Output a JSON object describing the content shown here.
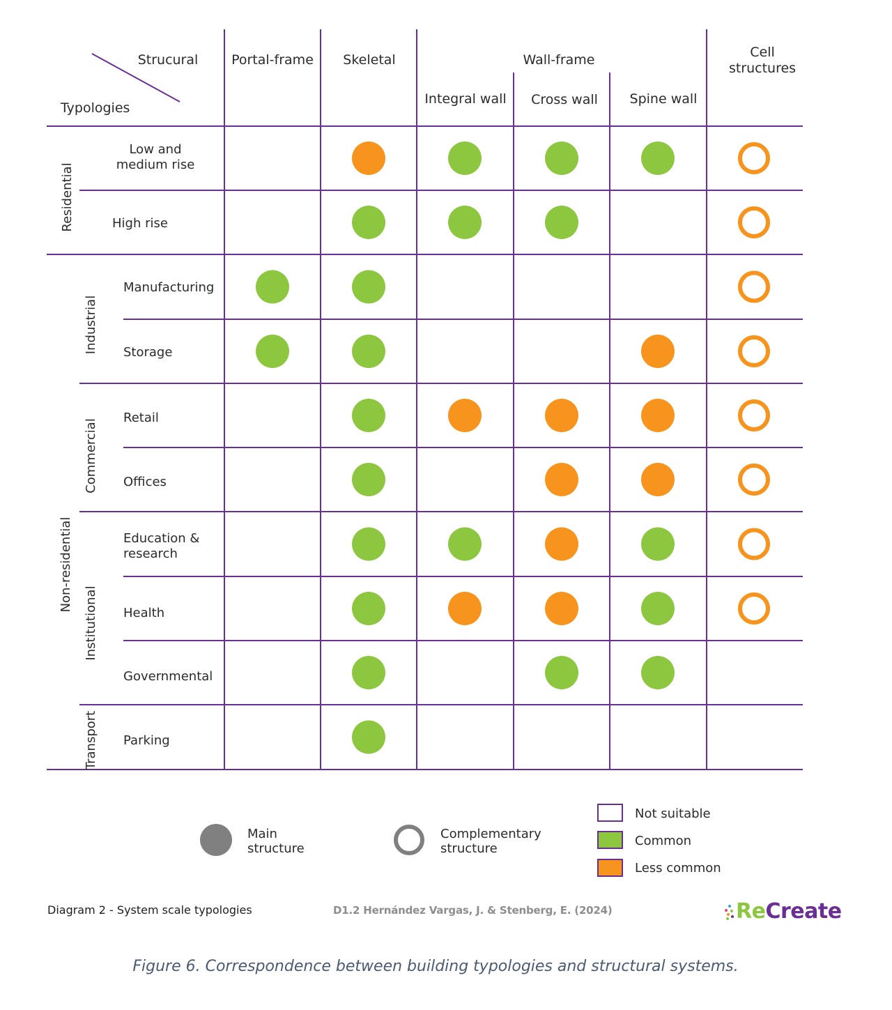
{
  "header": {
    "corner_top": "Strucural",
    "corner_bottom": "Typologies",
    "columns": [
      {
        "label": "Portal-frame"
      },
      {
        "label": "Skeletal"
      },
      {
        "label": "Integral wall"
      },
      {
        "label": "Cross wall"
      },
      {
        "label": "Spine wall"
      },
      {
        "label_line1": "Cell",
        "label_line2": "structures"
      }
    ],
    "group_label": "Wall-frame"
  },
  "groups": {
    "residential": "Residential",
    "non_residential": "Non-residential",
    "industrial": "Industrial",
    "commercial": "Commercial",
    "institutional": "Institutional",
    "transport": "Transport"
  },
  "rows": [
    {
      "line1": "Low and",
      "line2": "medium rise",
      "cells": [
        "none",
        "less-main",
        "common-main",
        "common-main",
        "common-main",
        "less-comp"
      ]
    },
    {
      "line1": "High rise",
      "cells": [
        "none",
        "common-main",
        "common-main",
        "common-main",
        "none",
        "less-comp"
      ]
    },
    {
      "line1": "Manufacturing",
      "cells": [
        "common-main",
        "common-main",
        "none",
        "none",
        "none",
        "less-comp"
      ]
    },
    {
      "line1": "Storage",
      "cells": [
        "common-main",
        "common-main",
        "none",
        "none",
        "less-main",
        "less-comp"
      ]
    },
    {
      "line1": "Retail",
      "cells": [
        "none",
        "common-main",
        "less-main",
        "less-main",
        "less-main",
        "less-comp"
      ]
    },
    {
      "line1": "Offices",
      "cells": [
        "none",
        "common-main",
        "none",
        "less-main",
        "less-main",
        "less-comp"
      ]
    },
    {
      "line1": "Education &",
      "line2": "research",
      "cells": [
        "none",
        "common-main",
        "common-main",
        "less-main",
        "common-main",
        "less-comp"
      ]
    },
    {
      "line1": "Health",
      "cells": [
        "none",
        "common-main",
        "less-main",
        "less-main",
        "common-main",
        "less-comp"
      ]
    },
    {
      "line1": "Governmental",
      "cells": [
        "none",
        "common-main",
        "none",
        "common-main",
        "common-main",
        "none"
      ]
    },
    {
      "line1": "Parking",
      "cells": [
        "none",
        "common-main",
        "none",
        "none",
        "none",
        "none"
      ]
    }
  ],
  "legend": {
    "main_line1": "Main",
    "main_line2": "structure",
    "comp_line1": "Complementary",
    "comp_line2": "structure",
    "not_suitable": "Not suitable",
    "common": "Common",
    "less_common": "Less common"
  },
  "colors": {
    "grid": "#6a2f95",
    "common": "#8dc63f",
    "less_common": "#f7941d",
    "legend_grey": "#808080"
  },
  "footer": {
    "diagram_label": "Diagram 2 - System scale typologies",
    "citation": "D1.2  Hernández Vargas, J. & Stenberg, E. (2024)",
    "logo_re": "Re",
    "logo_create": "Create"
  },
  "caption": "Figure 6. Correspondence between building typologies and structural systems."
}
